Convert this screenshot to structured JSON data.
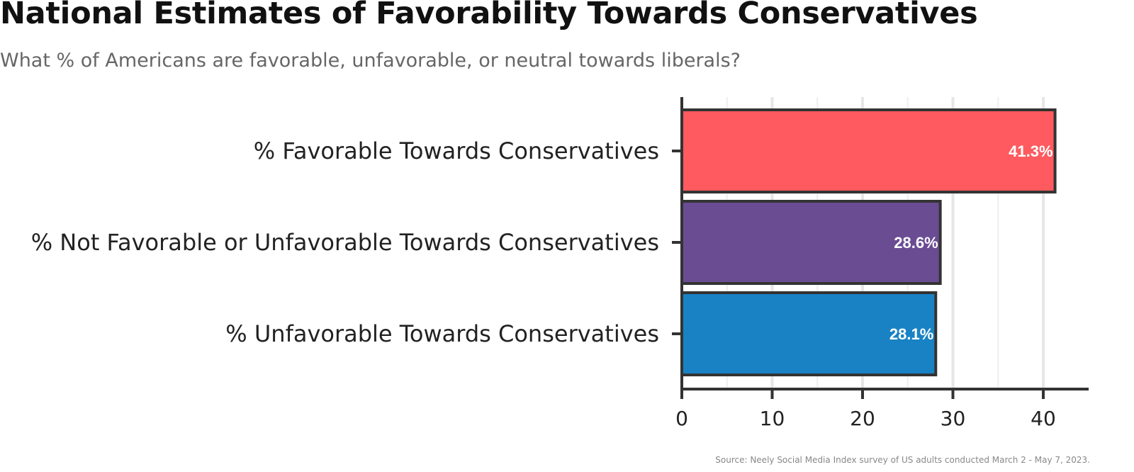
{
  "header": {
    "title": "National Estimates of Favorability Towards Conservatives",
    "subtitle": "What % of Americans are favorable, unfavorable, or neutral towards liberals?"
  },
  "footer": {
    "caption": "Source: Neely Social Media Index survey of US adults conducted March 2 - May 7, 2023."
  },
  "chart_data": {
    "type": "bar",
    "orientation": "horizontal",
    "title": "National Estimates of Favorability Towards Conservatives",
    "subtitle": "What % of Americans are favorable, unfavorable, or neutral towards liberals?",
    "categories": [
      "% Favorable Towards Conservatives",
      "% Not Favorable or Unfavorable Towards Conservatives",
      "% Unfavorable Towards Conservatives"
    ],
    "values": [
      41.3,
      28.6,
      28.1
    ],
    "value_labels": [
      "41.3%",
      "28.6%",
      "28.1%"
    ],
    "colors": [
      "#FF5A5F",
      "#6A4C93",
      "#1982C4"
    ],
    "xticks": [
      0,
      10,
      20,
      30,
      40
    ],
    "xlim": [
      0,
      45
    ],
    "xlabel": "",
    "ylabel": "",
    "grid": true,
    "legend": "none"
  }
}
